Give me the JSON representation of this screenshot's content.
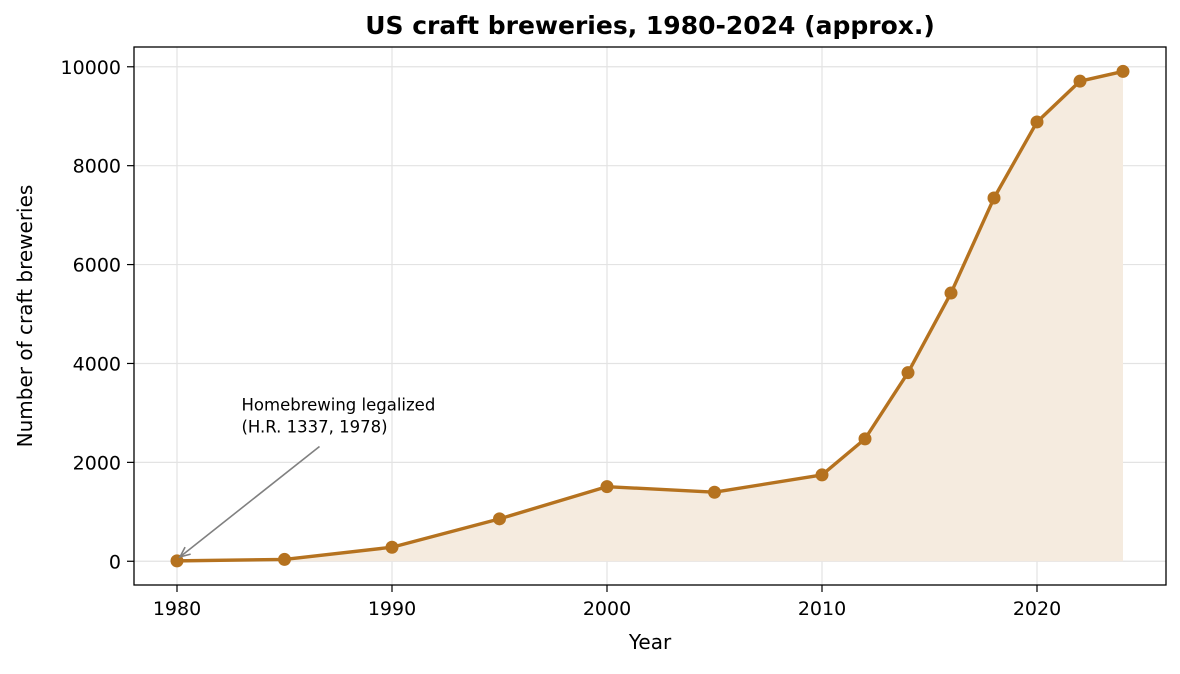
{
  "chart_data": {
    "type": "area",
    "title": "US craft breweries, 1980-2024 (approx.)",
    "xlabel": "Year",
    "ylabel": "Number of craft breweries",
    "xlim": [
      1978,
      2026
    ],
    "ylim": [
      -480,
      10400
    ],
    "x_ticks": [
      1980,
      1990,
      2000,
      2010,
      2020
    ],
    "y_ticks": [
      0,
      2000,
      4000,
      6000,
      8000,
      10000
    ],
    "grid": true,
    "legend": "none",
    "series": [
      {
        "x": [
          1980,
          1985,
          1990,
          1995,
          2000,
          2005,
          2010,
          2012,
          2014,
          2016,
          2018,
          2020,
          2022,
          2024
        ],
        "values": [
          8,
          37,
          284,
          858,
          1509,
          1396,
          1746,
          2475,
          3814,
          5424,
          7346,
          8884,
          9709,
          9906
        ],
        "color": "#b5721f",
        "fill_color": "#f5ebdf"
      }
    ],
    "annotations": [
      {
        "lines": [
          "Homebrewing legalized",
          "(H.R. 1337, 1978)"
        ],
        "point": {
          "x": 1980,
          "y": 8
        },
        "text_at": {
          "x": 1983,
          "y": 3050
        },
        "arrow_color": "#808080"
      }
    ]
  }
}
